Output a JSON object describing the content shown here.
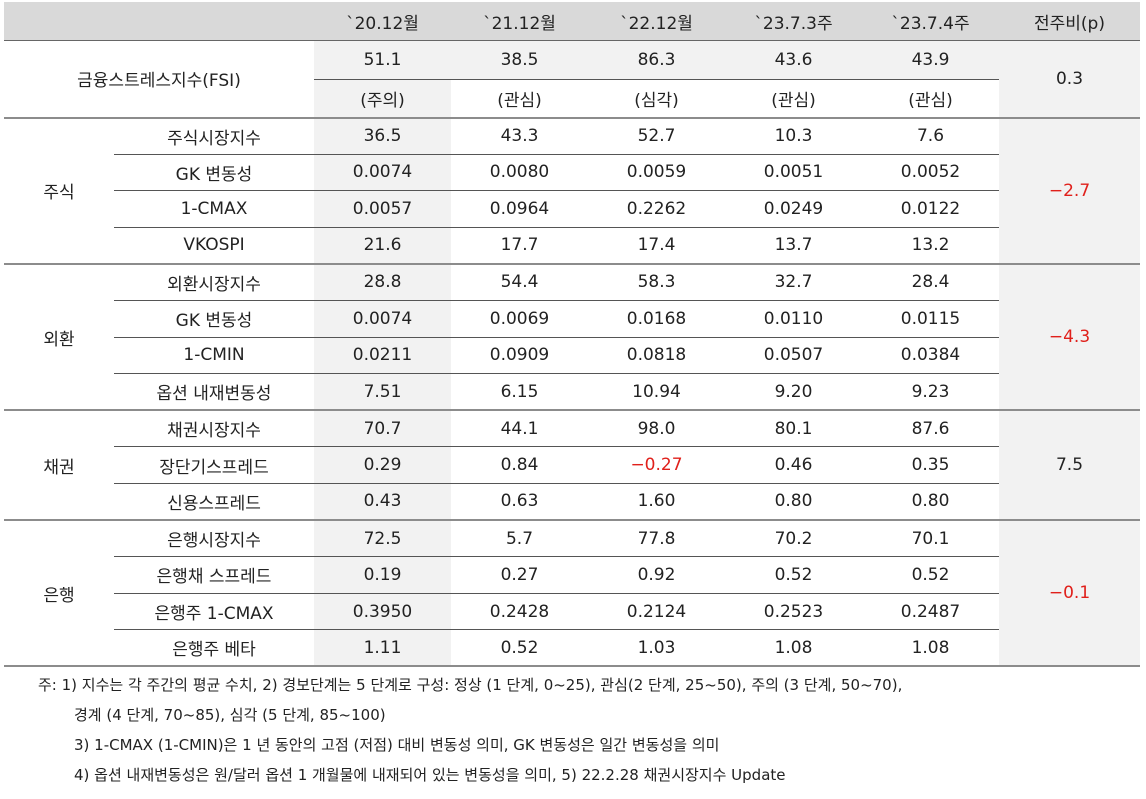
{
  "header": {
    "columns": [
      "`20.12월",
      "`21.12월",
      "`22.12월",
      "`23.7.3주",
      "`23.7.4주",
      "전주비(p)"
    ]
  },
  "fsi": {
    "label": "금융스트레스지수(FSI)",
    "values": [
      "51.1",
      "38.5",
      "86.3",
      "43.6",
      "43.9"
    ],
    "levels": [
      "(주의)",
      "(관심)",
      "(심각)",
      "(관심)",
      "(관심)"
    ],
    "change": "0.3"
  },
  "groups": [
    {
      "name": "주식",
      "change": "−2.7",
      "rows": [
        {
          "label": "주식시장지수",
          "values": [
            "36.5",
            "43.3",
            "52.7",
            "10.3",
            "7.6"
          ]
        },
        {
          "label": "GK 변동성",
          "values": [
            "0.0074",
            "0.0080",
            "0.0059",
            "0.0051",
            "0.0052"
          ]
        },
        {
          "label": "1-CMAX",
          "values": [
            "0.0057",
            "0.0964",
            "0.2262",
            "0.0249",
            "0.0122"
          ]
        },
        {
          "label": "VKOSPI",
          "values": [
            "21.6",
            "17.7",
            "17.4",
            "13.7",
            "13.2"
          ]
        }
      ]
    },
    {
      "name": "외환",
      "change": "−4.3",
      "rows": [
        {
          "label": "외환시장지수",
          "values": [
            "28.8",
            "54.4",
            "58.3",
            "32.7",
            "28.4"
          ]
        },
        {
          "label": "GK 변동성",
          "values": [
            "0.0074",
            "0.0069",
            "0.0168",
            "0.0110",
            "0.0115"
          ]
        },
        {
          "label": "1-CMIN",
          "values": [
            "0.0211",
            "0.0909",
            "0.0818",
            "0.0507",
            "0.0384"
          ]
        },
        {
          "label": "옵션 내재변동성",
          "values": [
            "7.51",
            "6.15",
            "10.94",
            "9.20",
            "9.23"
          ]
        }
      ]
    },
    {
      "name": "채권",
      "change": "7.5",
      "rows": [
        {
          "label": "채권시장지수",
          "values": [
            "70.7",
            "44.1",
            "98.0",
            "80.1",
            "87.6"
          ]
        },
        {
          "label": "장단기스프레드",
          "values": [
            "0.29",
            "0.84",
            "−0.27",
            "0.46",
            "0.35"
          ]
        },
        {
          "label": "신용스프레드",
          "values": [
            "0.43",
            "0.63",
            "1.60",
            "0.80",
            "0.80"
          ]
        }
      ]
    },
    {
      "name": "은행",
      "change": "−0.1",
      "rows": [
        {
          "label": "은행시장지수",
          "values": [
            "72.5",
            "5.7",
            "77.8",
            "70.2",
            "70.1"
          ]
        },
        {
          "label": "은행채 스프레드",
          "values": [
            "0.19",
            "0.27",
            "0.92",
            "0.52",
            "0.52"
          ]
        },
        {
          "label": "은행주 1-CMAX",
          "values": [
            "0.3950",
            "0.2428",
            "0.2124",
            "0.2523",
            "0.2487"
          ]
        },
        {
          "label": "은행주 베타",
          "values": [
            "1.11",
            "0.52",
            "1.03",
            "1.08",
            "1.08"
          ]
        }
      ]
    }
  ],
  "notes": [
    "주: 1) 지수는 각 주간의 평균 수치, 2) 경보단계는 5 단계로 구성: 정상 (1 단계, 0~25), 관심(2 단계, 25~50), 주의 (3 단계, 50~70),",
    "경계 (4 단계, 70~85), 심각 (5 단계, 85~100)",
    "3) 1-CMAX (1-CMIN)은 1 년 동안의 고점 (저점) 대비 변동성 의미, GK 변동성은 일간 변동성을 의미",
    "4) 옵션 내재변동성은 원/달러 옵션 1 개월물에 내재되어 있는 변동성을 의미, 5) 22.2.28 채권시장지수 Update"
  ]
}
